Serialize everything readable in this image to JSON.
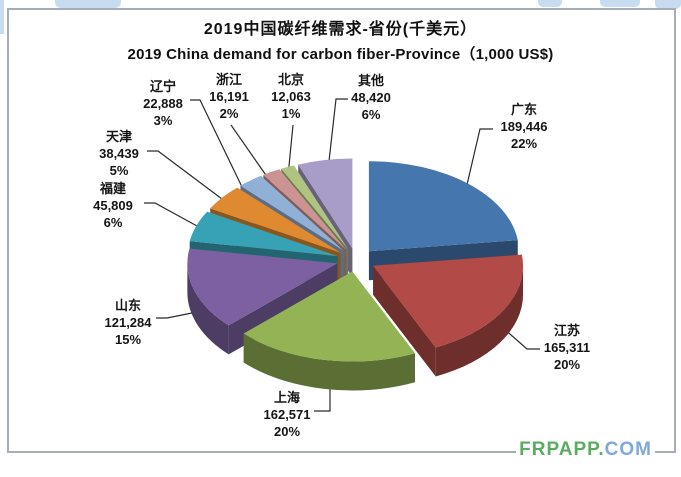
{
  "page": {
    "watermark": {
      "green_part": "FRPAPP.",
      "blue_part": "COM",
      "green_color": "#5cac60",
      "blue_color": "#7fa8dc"
    }
  },
  "chart_data": {
    "type": "pie",
    "style": "3d-exploded-pie",
    "title_zh": "2019中国碳纤维需求-省份(千美元）",
    "title_en": "2019 China demand for carbon fiber-Province（1,000 US$)",
    "unit_label": "千美元 (1,000 US$)",
    "start_angle": "12-oclock",
    "direction": "clockwise",
    "legend_position": "none",
    "slices": [
      {
        "name": "广东",
        "value": 189446,
        "value_label": "189,446",
        "pct_label": "22%",
        "color": "#4576AE"
      },
      {
        "name": "江苏",
        "value": 165311,
        "value_label": "165,311",
        "pct_label": "20%",
        "color": "#B24A47"
      },
      {
        "name": "上海",
        "value": 162571,
        "value_label": "162,571",
        "pct_label": "20%",
        "color": "#93B355"
      },
      {
        "name": "山东",
        "value": 121284,
        "value_label": "121,284",
        "pct_label": "15%",
        "color": "#7C60A2"
      },
      {
        "name": "福建",
        "value": 45809,
        "value_label": "45,809",
        "pct_label": "6%",
        "color": "#37A1B5"
      },
      {
        "name": "天津",
        "value": 38439,
        "value_label": "38,439",
        "pct_label": "5%",
        "color": "#DF8A30"
      },
      {
        "name": "辽宁",
        "value": 22888,
        "value_label": "22,888",
        "pct_label": "3%",
        "color": "#91B0D5"
      },
      {
        "name": "浙江",
        "value": 16191,
        "value_label": "16,191",
        "pct_label": "2%",
        "color": "#CB9492"
      },
      {
        "name": "北京",
        "value": 12063,
        "value_label": "12,063",
        "pct_label": "1%",
        "color": "#AEC480"
      },
      {
        "name": "其他",
        "value": 48420,
        "value_label": "48,420",
        "pct_label": "6%",
        "color": "#A89DC8"
      }
    ]
  }
}
